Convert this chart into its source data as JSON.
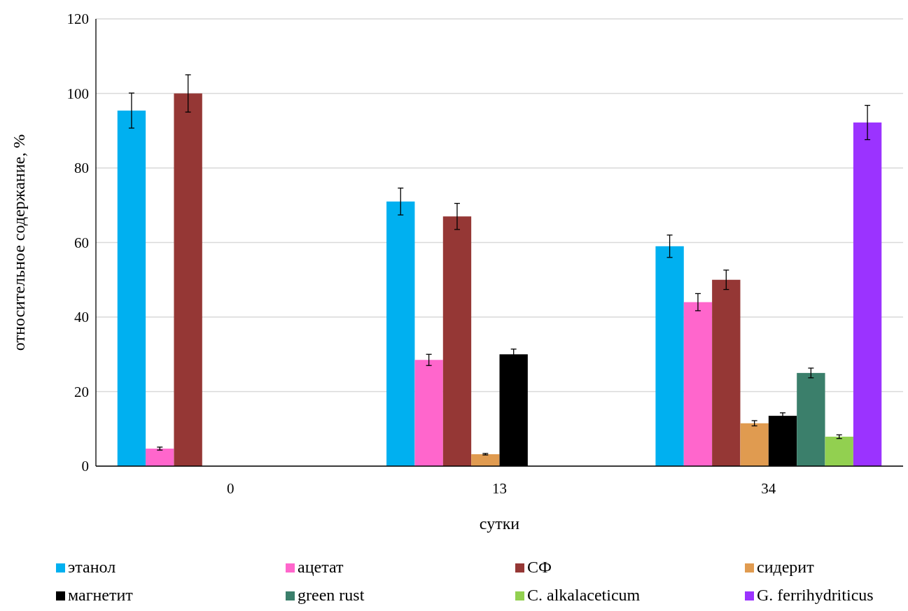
{
  "chart_data": {
    "type": "bar",
    "xlabel": "сутки",
    "ylabel": "относительное содержание, %",
    "categories": [
      "0",
      "13",
      "34"
    ],
    "ylim": [
      0,
      120
    ],
    "yticks": [
      0,
      20,
      40,
      60,
      80,
      100,
      120
    ],
    "grid": "y",
    "legend": "bottom",
    "series": [
      {
        "name": "этанол",
        "color": "#00b0f0",
        "values": [
          95.4,
          71,
          59
        ],
        "errors": [
          4.7,
          3.6,
          3
        ]
      },
      {
        "name": "ацетат",
        "color": "#ff66cc",
        "values": [
          4.7,
          28.5,
          44
        ],
        "errors": [
          0.4,
          1.5,
          2.3
        ]
      },
      {
        "name": "СФ",
        "color": "#953735",
        "values": [
          100,
          67,
          50
        ],
        "errors": [
          5,
          3.5,
          2.6
        ]
      },
      {
        "name": "сидерит",
        "color": "#e09b50",
        "values": [
          null,
          3.2,
          11.5
        ],
        "errors": [
          null,
          0.2,
          0.7
        ]
      },
      {
        "name": "магнетит",
        "color": "#000000",
        "values": [
          null,
          30,
          13.5
        ],
        "errors": [
          null,
          1.4,
          0.8
        ]
      },
      {
        "name": "green rust",
        "color": "#3b7f6b",
        "values": [
          null,
          null,
          25
        ],
        "errors": [
          null,
          null,
          1.3
        ]
      },
      {
        "name": "C. alkalaceticum",
        "color": "#92d050",
        "values": [
          null,
          null,
          7.9
        ],
        "errors": [
          null,
          null,
          0.5
        ]
      },
      {
        "name": "G. ferrihydriticus",
        "color": "#9b33ff",
        "values": [
          null,
          null,
          92.2
        ],
        "errors": [
          null,
          null,
          4.6
        ]
      }
    ]
  }
}
